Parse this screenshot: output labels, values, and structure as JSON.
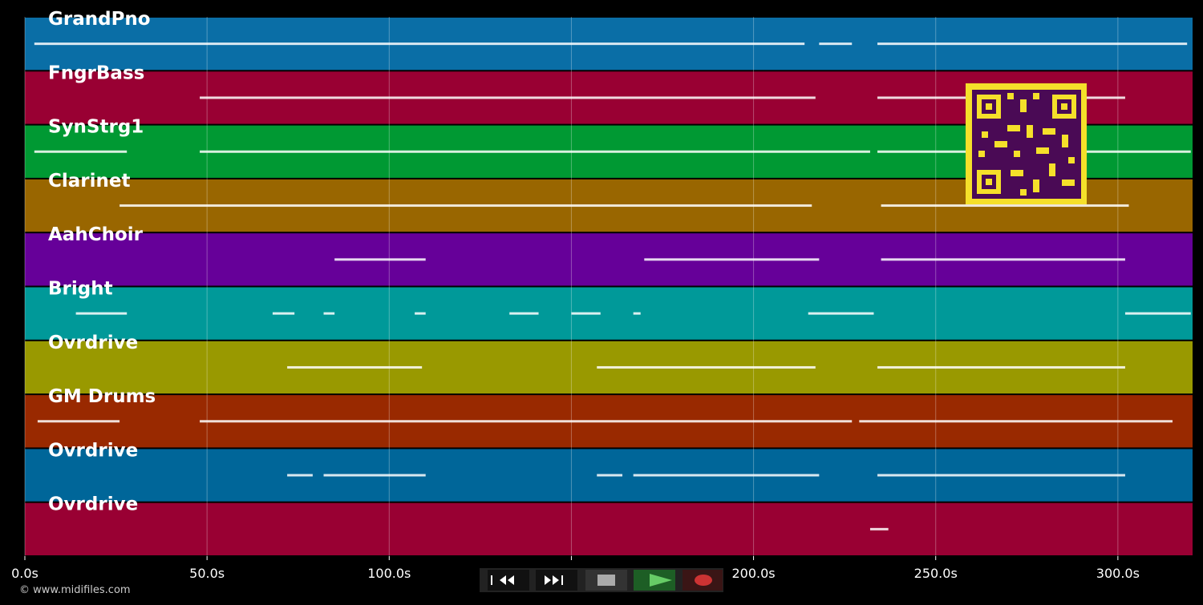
{
  "time_axis": {
    "xlim": [
      0,
      320.5
    ],
    "ticks": [
      {
        "value": 0,
        "label": "0.0s"
      },
      {
        "value": 50,
        "label": "50.0s"
      },
      {
        "value": 100,
        "label": "100.0s"
      },
      {
        "value": 150,
        "label": "150.0s"
      },
      {
        "value": 200,
        "label": "200.0s"
      },
      {
        "value": 250,
        "label": "250.0s"
      },
      {
        "value": 300,
        "label": "300.0s"
      }
    ]
  },
  "tracks": [
    {
      "name": "GrandPno",
      "color": "#0a6ea6",
      "notes": [
        {
          "start": 2.6,
          "end": 214
        },
        {
          "start": 218,
          "end": 227
        },
        {
          "start": 234,
          "end": 319
        }
      ]
    },
    {
      "name": "FngrBass",
      "color": "#990033",
      "notes": [
        {
          "start": 48,
          "end": 217
        },
        {
          "start": 234,
          "end": 302
        }
      ]
    },
    {
      "name": "SynStrg1",
      "color": "#009933",
      "notes": [
        {
          "start": 2.6,
          "end": 28
        },
        {
          "start": 48,
          "end": 232
        },
        {
          "start": 234,
          "end": 320
        }
      ]
    },
    {
      "name": "Clarinet",
      "color": "#996600",
      "notes": [
        {
          "start": 26,
          "end": 216
        },
        {
          "start": 235,
          "end": 303
        }
      ]
    },
    {
      "name": "AahChoir",
      "color": "#660099",
      "notes": [
        {
          "start": 85,
          "end": 110
        },
        {
          "start": 170,
          "end": 218
        },
        {
          "start": 235,
          "end": 302
        }
      ]
    },
    {
      "name": "Bright",
      "color": "#009999",
      "notes": [
        {
          "start": 14,
          "end": 28
        },
        {
          "start": 68,
          "end": 74
        },
        {
          "start": 82,
          "end": 85
        },
        {
          "start": 107,
          "end": 110
        },
        {
          "start": 133,
          "end": 141
        },
        {
          "start": 150,
          "end": 158
        },
        {
          "start": 167,
          "end": 169
        },
        {
          "start": 215,
          "end": 233
        },
        {
          "start": 302,
          "end": 320
        }
      ]
    },
    {
      "name": "Ovrdrive",
      "color": "#999900",
      "notes": [
        {
          "start": 72,
          "end": 109
        },
        {
          "start": 157,
          "end": 217
        },
        {
          "start": 234,
          "end": 302
        }
      ]
    },
    {
      "name": "GM Drums",
      "color": "#992900",
      "notes": [
        {
          "start": 3.5,
          "end": 26
        },
        {
          "start": 48,
          "end": 227
        },
        {
          "start": 229,
          "end": 315
        }
      ]
    },
    {
      "name": "Ovrdrive",
      "color": "#006699",
      "notes": [
        {
          "start": 72,
          "end": 79
        },
        {
          "start": 82,
          "end": 110
        },
        {
          "start": 157,
          "end": 164
        },
        {
          "start": 167,
          "end": 218
        },
        {
          "start": 234,
          "end": 302
        }
      ]
    },
    {
      "name": "Ovrdrive",
      "color": "#990033",
      "notes": [
        {
          "start": 232,
          "end": 237
        }
      ]
    }
  ],
  "footer": {
    "credit": "© www.midifiles.com"
  }
}
